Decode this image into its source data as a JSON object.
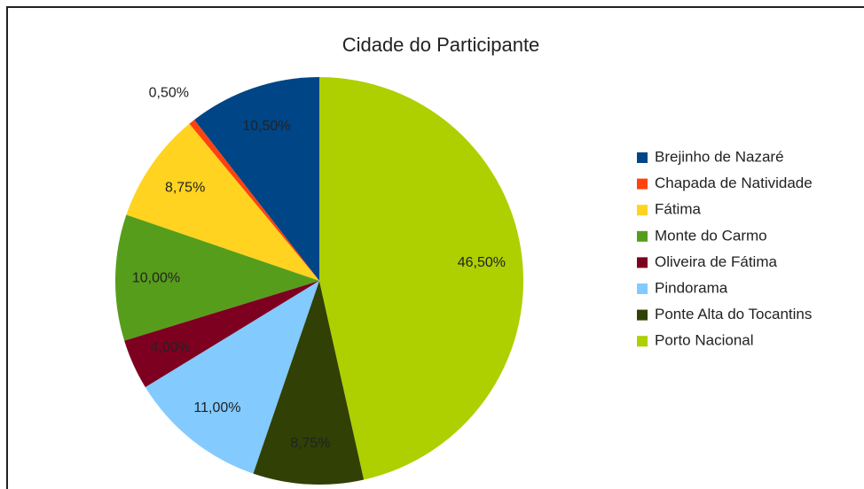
{
  "chart_data": {
    "type": "pie",
    "title": "Cidade do Participante",
    "categories": [
      "Brejinho de Nazaré",
      "Chapada de Natividade",
      "Fátima",
      "Monte do Carmo",
      "Oliveira de Fátima",
      "Pindorama",
      "Ponte Alta do Tocantins",
      "Porto Nacional"
    ],
    "values": [
      10.5,
      0.5,
      8.75,
      10,
      4,
      11,
      8.75,
      46.5
    ],
    "value_labels": [
      "10,50%",
      "0,50%",
      "8,75%",
      "10,00%",
      "4,00%",
      "11,00%",
      "8,75%",
      "46,50%"
    ],
    "colors": [
      "#004586",
      "#ff420e",
      "#ffd320",
      "#579d1c",
      "#7e0021",
      "#83caff",
      "#314004",
      "#aecf00"
    ],
    "legend": "right"
  }
}
